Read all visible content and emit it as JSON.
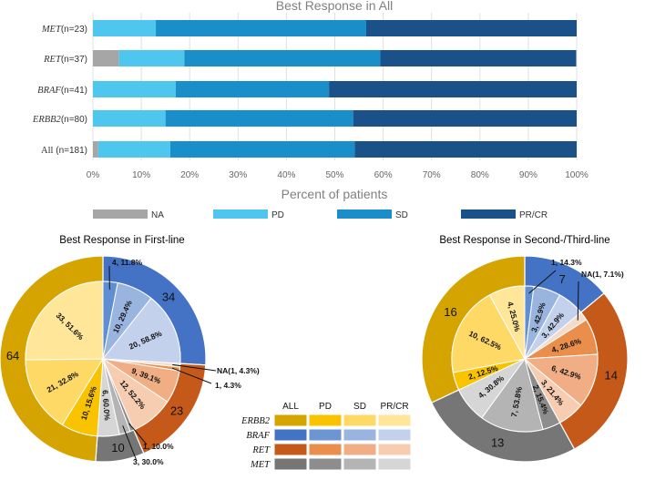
{
  "chart_data": [
    {
      "type": "bar",
      "orientation": "horizontal-stacked",
      "title": "Best Response in All",
      "xlabel": "Percent of patients",
      "xlim": [
        0,
        100
      ],
      "xticks": [
        "0%",
        "10%",
        "20%",
        "30%",
        "40%",
        "50%",
        "60%",
        "70%",
        "80%",
        "90%",
        "100%"
      ],
      "categories": [
        {
          "gene": "MET",
          "count": "(n=23)"
        },
        {
          "gene": "RET",
          "count": "(n=37)"
        },
        {
          "gene": "BRAF",
          "count": "(n=41)"
        },
        {
          "gene": "ERBB2",
          "count": "(n=80)"
        },
        {
          "gene": "All",
          "count": "(n=181)"
        }
      ],
      "series": [
        {
          "name": "NA",
          "color": "#a6a6a6",
          "values": [
            0,
            5.4,
            0,
            0,
            1.1
          ]
        },
        {
          "name": "PD",
          "color": "#4ec6ee",
          "values": [
            13.0,
            13.5,
            17.1,
            15.0,
            14.9
          ]
        },
        {
          "name": "SD",
          "color": "#1a8ec9",
          "values": [
            43.5,
            40.5,
            31.7,
            38.8,
            38.1
          ]
        },
        {
          "name": "PR/CR",
          "color": "#1a5189",
          "values": [
            43.5,
            40.5,
            51.2,
            46.2,
            45.9
          ]
        }
      ]
    },
    {
      "type": "pie",
      "title": "Best Response in First-line",
      "outer": [
        {
          "label": "34",
          "value": 34,
          "color": "#4472c4"
        },
        {
          "label": "23",
          "value": 23,
          "color": "#c5591a"
        },
        {
          "label": "10",
          "value": 10,
          "color": "#767676"
        },
        {
          "label": "64",
          "value": 64,
          "color": "#d6a400"
        }
      ],
      "inner": [
        {
          "label": "4, 11.8%",
          "value": 4,
          "color": "#5f8fd2",
          "callout": true
        },
        {
          "label": "10, 29.4%",
          "value": 10,
          "color": "#9ab4e0"
        },
        {
          "label": "20, 58.8%",
          "value": 20,
          "color": "#c3d1ec"
        },
        {
          "label": "NA(1, 4.3%)",
          "value": 1,
          "color": "#f3dcc9",
          "callout": true
        },
        {
          "label": "1, 4.3%",
          "value": 1,
          "color": "#ea8e4c",
          "callout": true
        },
        {
          "label": "9, 39.1%",
          "value": 9,
          "color": "#f1ae84"
        },
        {
          "label": "12, 52.2%",
          "value": 12,
          "color": "#f7cdb2"
        },
        {
          "label": "1, 10.0%",
          "value": 1,
          "color": "#8d8d8d",
          "callout": true
        },
        {
          "label": "3, 30.0%",
          "value": 3,
          "color": "#b4b4b4",
          "callout": true
        },
        {
          "label": "6, 60.0%",
          "value": 6,
          "color": "#d6d6d6"
        },
        {
          "label": "10, 15.6%",
          "value": 10,
          "color": "#f9c300"
        },
        {
          "label": "21, 32.8%",
          "value": 21,
          "color": "#ffd966"
        },
        {
          "label": "33, 51.6%",
          "value": 33,
          "color": "#ffe699"
        }
      ]
    },
    {
      "type": "pie",
      "title": "Best Response in Second-/Third-line",
      "outer": [
        {
          "label": "7",
          "value": 7,
          "color": "#4472c4"
        },
        {
          "label": "14",
          "value": 14,
          "color": "#c5591a"
        },
        {
          "label": "13",
          "value": 13,
          "color": "#767676"
        },
        {
          "label": "16",
          "value": 16,
          "color": "#d6a400"
        }
      ],
      "inner": [
        {
          "label": "1, 14.3%",
          "value": 1,
          "color": "#5f8fd2",
          "callout": true
        },
        {
          "label": "3, 42.9%",
          "value": 3,
          "color": "#9ab4e0"
        },
        {
          "label": "3, 42.9%",
          "value": 3,
          "color": "#c3d1ec"
        },
        {
          "label": "NA(1, 7.1%)",
          "value": 1,
          "color": "#f3dcc9",
          "callout": true
        },
        {
          "label": "4, 28.6%",
          "value": 4,
          "color": "#ea8e4c"
        },
        {
          "label": "6, 42.9%",
          "value": 6,
          "color": "#f1ae84"
        },
        {
          "label": "3, 21.4%",
          "value": 3,
          "color": "#f7cdb2"
        },
        {
          "label": "2, 15.4%",
          "value": 2,
          "color": "#8d8d8d"
        },
        {
          "label": "7, 53.8%",
          "value": 7,
          "color": "#b4b4b4"
        },
        {
          "label": "4, 30.8%",
          "value": 4,
          "color": "#d6d6d6"
        },
        {
          "label": "2, 12.5%",
          "value": 2,
          "color": "#f9c300"
        },
        {
          "label": "10, 62.5%",
          "value": 10,
          "color": "#ffd966"
        },
        {
          "label": "4, 25.0%",
          "value": 4,
          "color": "#ffe699"
        }
      ]
    }
  ],
  "pie_legend": {
    "columns": [
      "ALL",
      "PD",
      "SD",
      "PR/CR"
    ],
    "rows": [
      {
        "gene": "ERBB2",
        "colors": [
          "#d6a400",
          "#f9c300",
          "#ffd966",
          "#ffe699"
        ]
      },
      {
        "gene": "BRAF",
        "colors": [
          "#4472c4",
          "#6d95d4",
          "#9ab4e0",
          "#c3d1ec"
        ]
      },
      {
        "gene": "RET",
        "colors": [
          "#c5591a",
          "#ea8e4c",
          "#f1ae84",
          "#f7cdb2"
        ]
      },
      {
        "gene": "MET",
        "colors": [
          "#767676",
          "#8d8d8d",
          "#b4b4b4",
          "#d6d6d6"
        ]
      }
    ]
  }
}
